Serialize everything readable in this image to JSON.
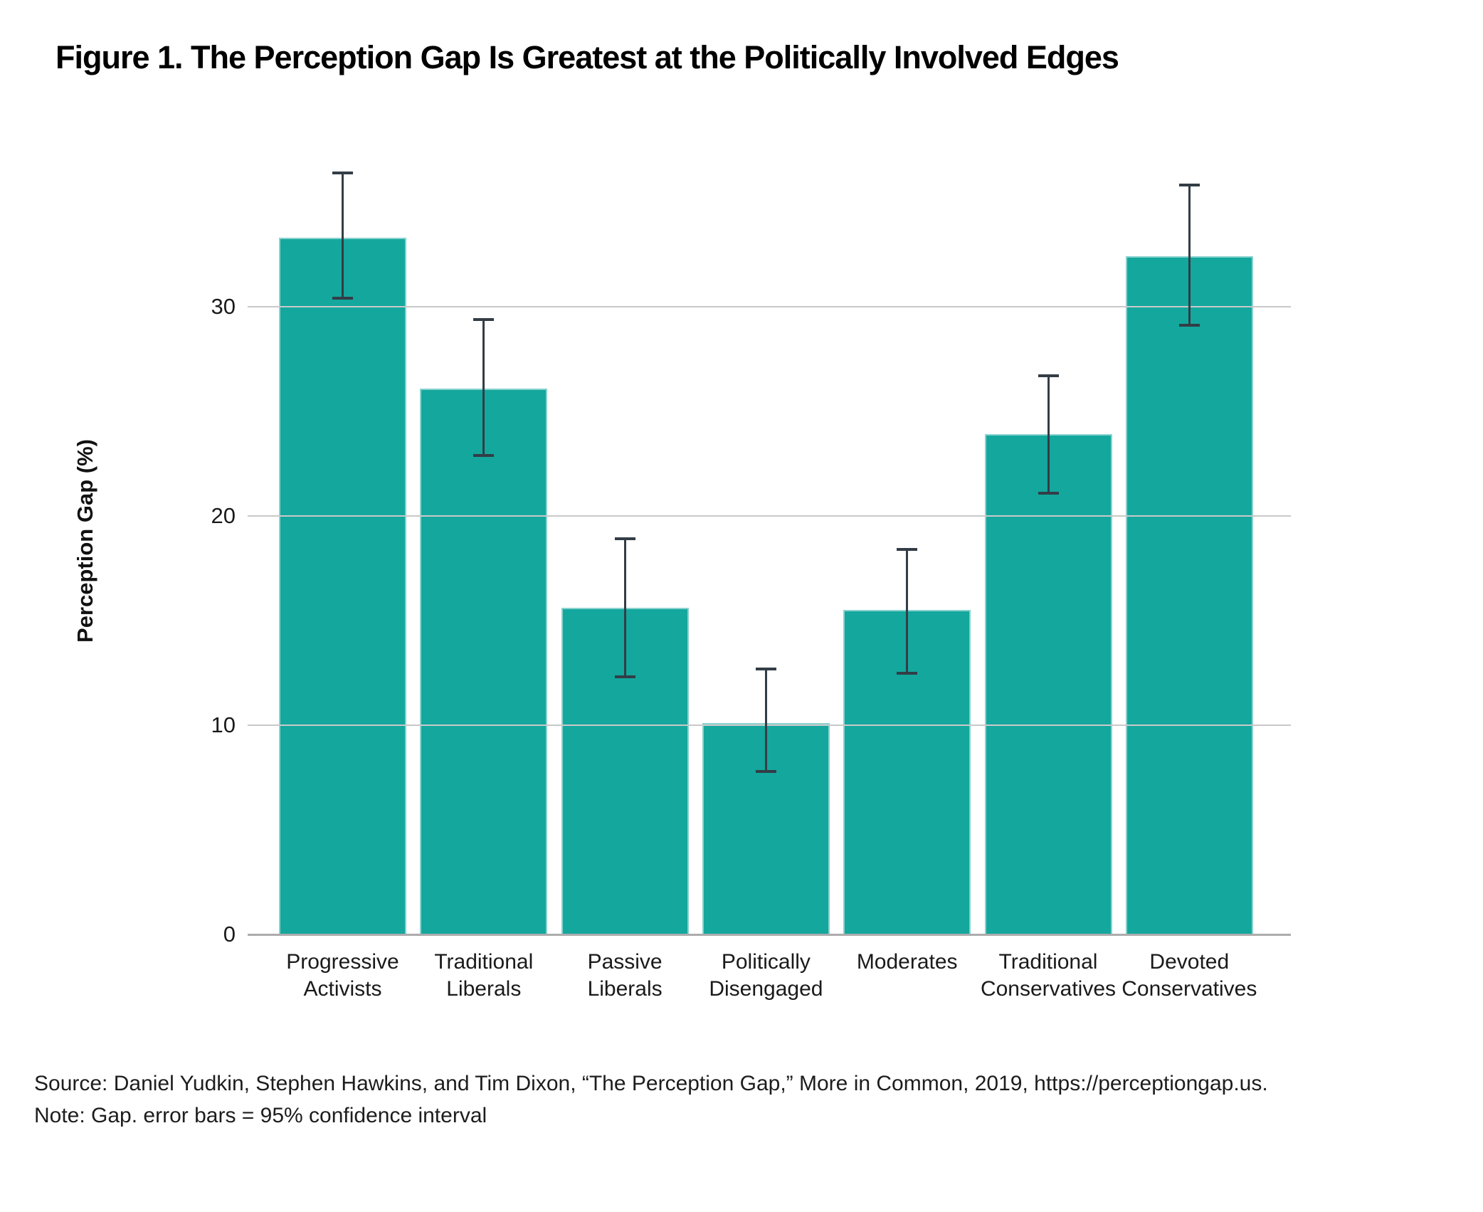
{
  "figure": {
    "title": "Figure 1. The Perception Gap Is Greatest at the Politically Involved Edges",
    "source": "Source: Daniel Yudkin, Stephen Hawkins, and Tim Dixon, “The Perception Gap,” More in Common, 2019, https://perceptiongap.us.",
    "note": "Note: Gap. error bars = 95% confidence interval"
  },
  "chart_data": {
    "type": "bar",
    "title": "Figure 1. The Perception Gap Is Greatest at the Politically Involved Edges",
    "xlabel": "",
    "ylabel": "Perception Gap (%)",
    "ylim": [
      0,
      38.9
    ],
    "yticks": [
      0,
      10,
      20,
      30
    ],
    "grid": true,
    "grid_on_top": true,
    "legend": "none",
    "bar_color": "#14A79D",
    "error_bar_color": "#333D46",
    "gridline_color": "#C9C9C9",
    "axis_line_color": "#ACACAC",
    "categories": [
      "Progressive Activists",
      "Traditional Liberals",
      "Passive Liberals",
      "Politically Disengaged",
      "Moderates",
      "Traditional Conservatives",
      "Devoted Conservatives"
    ],
    "category_label_lines": [
      [
        "Progressive",
        "Activists"
      ],
      [
        "Traditional",
        "Liberals"
      ],
      [
        "Passive",
        "Liberals"
      ],
      [
        "Politically",
        "Disengaged"
      ],
      [
        "Moderates"
      ],
      [
        "Traditional",
        "Conservatives"
      ],
      [
        "Devoted",
        "Conservatives"
      ]
    ],
    "values": [
      33.3,
      26.1,
      15.6,
      10.1,
      15.5,
      23.9,
      32.4
    ],
    "ci_low": [
      30.4,
      22.9,
      12.3,
      7.8,
      12.5,
      21.1,
      29.1
    ],
    "ci_high": [
      36.4,
      29.4,
      18.9,
      12.7,
      18.4,
      26.7,
      35.8
    ],
    "note": "error bars = 95% confidence interval"
  }
}
